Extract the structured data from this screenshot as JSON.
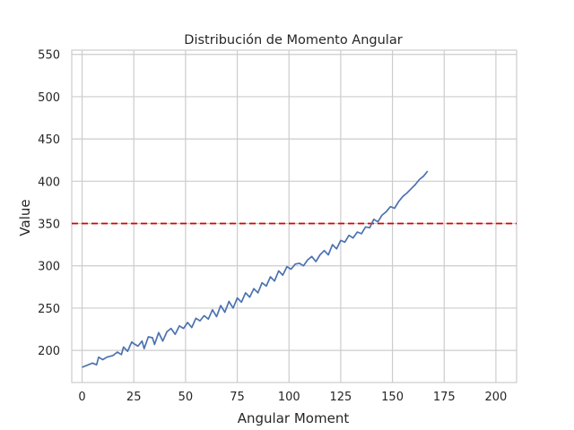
{
  "chart_data": {
    "type": "line",
    "title": "Distribución de Momento Angular",
    "xlabel": "Angular Moment",
    "ylabel": "Value",
    "xlim": [
      -5,
      210
    ],
    "ylim": [
      162,
      555
    ],
    "xticks": [
      0,
      25,
      50,
      75,
      100,
      125,
      150,
      175,
      200
    ],
    "yticks": [
      200,
      250,
      300,
      350,
      400,
      450,
      500,
      550
    ],
    "grid": true,
    "colors": {
      "line": "#4c72b0",
      "threshold": "#dd0000",
      "grid": "#cccccc",
      "spine": "#cccccc"
    },
    "threshold": {
      "y": 350,
      "style": "dashed"
    },
    "series": [
      {
        "points": [
          [
            0,
            180
          ],
          [
            5,
            185
          ],
          [
            7,
            183
          ],
          [
            8,
            192
          ],
          [
            10,
            189
          ],
          [
            12,
            192
          ],
          [
            15,
            194
          ],
          [
            17,
            198
          ],
          [
            19,
            195
          ],
          [
            20,
            204
          ],
          [
            22,
            199
          ],
          [
            24,
            210
          ],
          [
            25,
            208
          ],
          [
            27,
            205
          ],
          [
            29,
            211
          ],
          [
            30,
            202
          ],
          [
            32,
            216
          ],
          [
            34,
            215
          ],
          [
            35,
            207
          ],
          [
            37,
            221
          ],
          [
            39,
            211
          ],
          [
            41,
            222
          ],
          [
            43,
            226
          ],
          [
            45,
            219
          ],
          [
            47,
            229
          ],
          [
            49,
            226
          ],
          [
            51,
            233
          ],
          [
            53,
            227
          ],
          [
            55,
            238
          ],
          [
            57,
            235
          ],
          [
            59,
            241
          ],
          [
            61,
            237
          ],
          [
            63,
            248
          ],
          [
            65,
            240
          ],
          [
            67,
            253
          ],
          [
            69,
            245
          ],
          [
            71,
            258
          ],
          [
            73,
            250
          ],
          [
            75,
            262
          ],
          [
            77,
            257
          ],
          [
            79,
            268
          ],
          [
            81,
            263
          ],
          [
            83,
            273
          ],
          [
            85,
            268
          ],
          [
            87,
            280
          ],
          [
            89,
            276
          ],
          [
            91,
            287
          ],
          [
            93,
            282
          ],
          [
            95,
            294
          ],
          [
            97,
            289
          ],
          [
            99,
            299
          ],
          [
            101,
            296
          ],
          [
            103,
            302
          ],
          [
            105,
            303
          ],
          [
            107,
            300
          ],
          [
            109,
            307
          ],
          [
            111,
            311
          ],
          [
            113,
            305
          ],
          [
            115,
            313
          ],
          [
            117,
            318
          ],
          [
            119,
            313
          ],
          [
            121,
            325
          ],
          [
            123,
            320
          ],
          [
            125,
            330
          ],
          [
            127,
            328
          ],
          [
            129,
            336
          ],
          [
            131,
            333
          ],
          [
            133,
            340
          ],
          [
            135,
            338
          ],
          [
            137,
            346
          ],
          [
            139,
            345
          ],
          [
            141,
            355
          ],
          [
            143,
            352
          ],
          [
            145,
            360
          ],
          [
            147,
            364
          ],
          [
            149,
            370
          ],
          [
            151,
            368
          ],
          [
            153,
            376
          ],
          [
            155,
            382
          ],
          [
            157,
            386
          ],
          [
            159,
            391
          ],
          [
            161,
            396
          ],
          [
            163,
            402
          ],
          [
            165,
            406
          ],
          [
            167,
            412
          ]
        ]
      }
    ]
  }
}
